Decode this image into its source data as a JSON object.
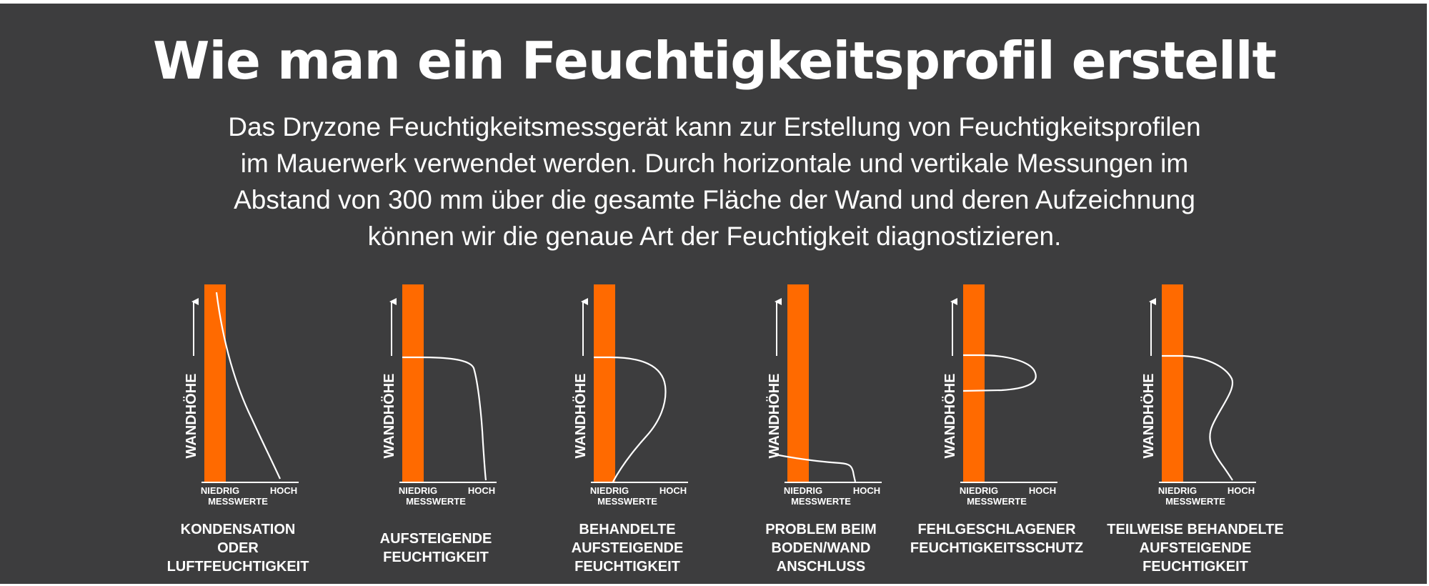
{
  "header": {
    "title": "Wie man ein Feuchtigkeitsprofil erstellt",
    "intro_lines": [
      "Das Dryzone Feuchtigkeitsmessgerät kann zur Erstellung von Feuchtigkeitsprofilen",
      "im Mauerwerk verwendet werden. Durch horizontale und vertikale Messungen im",
      "Abstand von 300 mm über die gesamte Fläche der Wand und deren Aufzeichnung",
      "können wir die genaue Art der Feuchtigkeit diagnostizieren."
    ]
  },
  "colors": {
    "background": "#3d3d3e",
    "wall": "#ff6a00",
    "text": "#ffffff"
  },
  "axis": {
    "y_label": "WANDHÖHE",
    "x_low": "NIEDRIG",
    "x_high": "HOCH",
    "x_label": "MESSWERTE"
  },
  "profiles": [
    {
      "caption": [
        "KONDENSATION",
        "ODER",
        "LUFTFEUCHTIGKEIT"
      ]
    },
    {
      "caption": [
        "AUFSTEIGENDE",
        "FEUCHTIGKEIT"
      ]
    },
    {
      "caption": [
        "BEHANDELTE",
        "AUFSTEIGENDE",
        "FEUCHTIGKEIT"
      ]
    },
    {
      "caption": [
        "PROBLEM BEIM",
        "BODEN/WAND",
        "ANSCHLUSS"
      ]
    },
    {
      "caption": [
        "FEHLGESCHLAGENER",
        "FEUCHTIGKEITSSCHUTZ"
      ]
    },
    {
      "caption": [
        "TEILWEISE BEHANDELTE",
        "AUFSTEIGENDE",
        "FEUCHTIGKEIT"
      ]
    }
  ]
}
